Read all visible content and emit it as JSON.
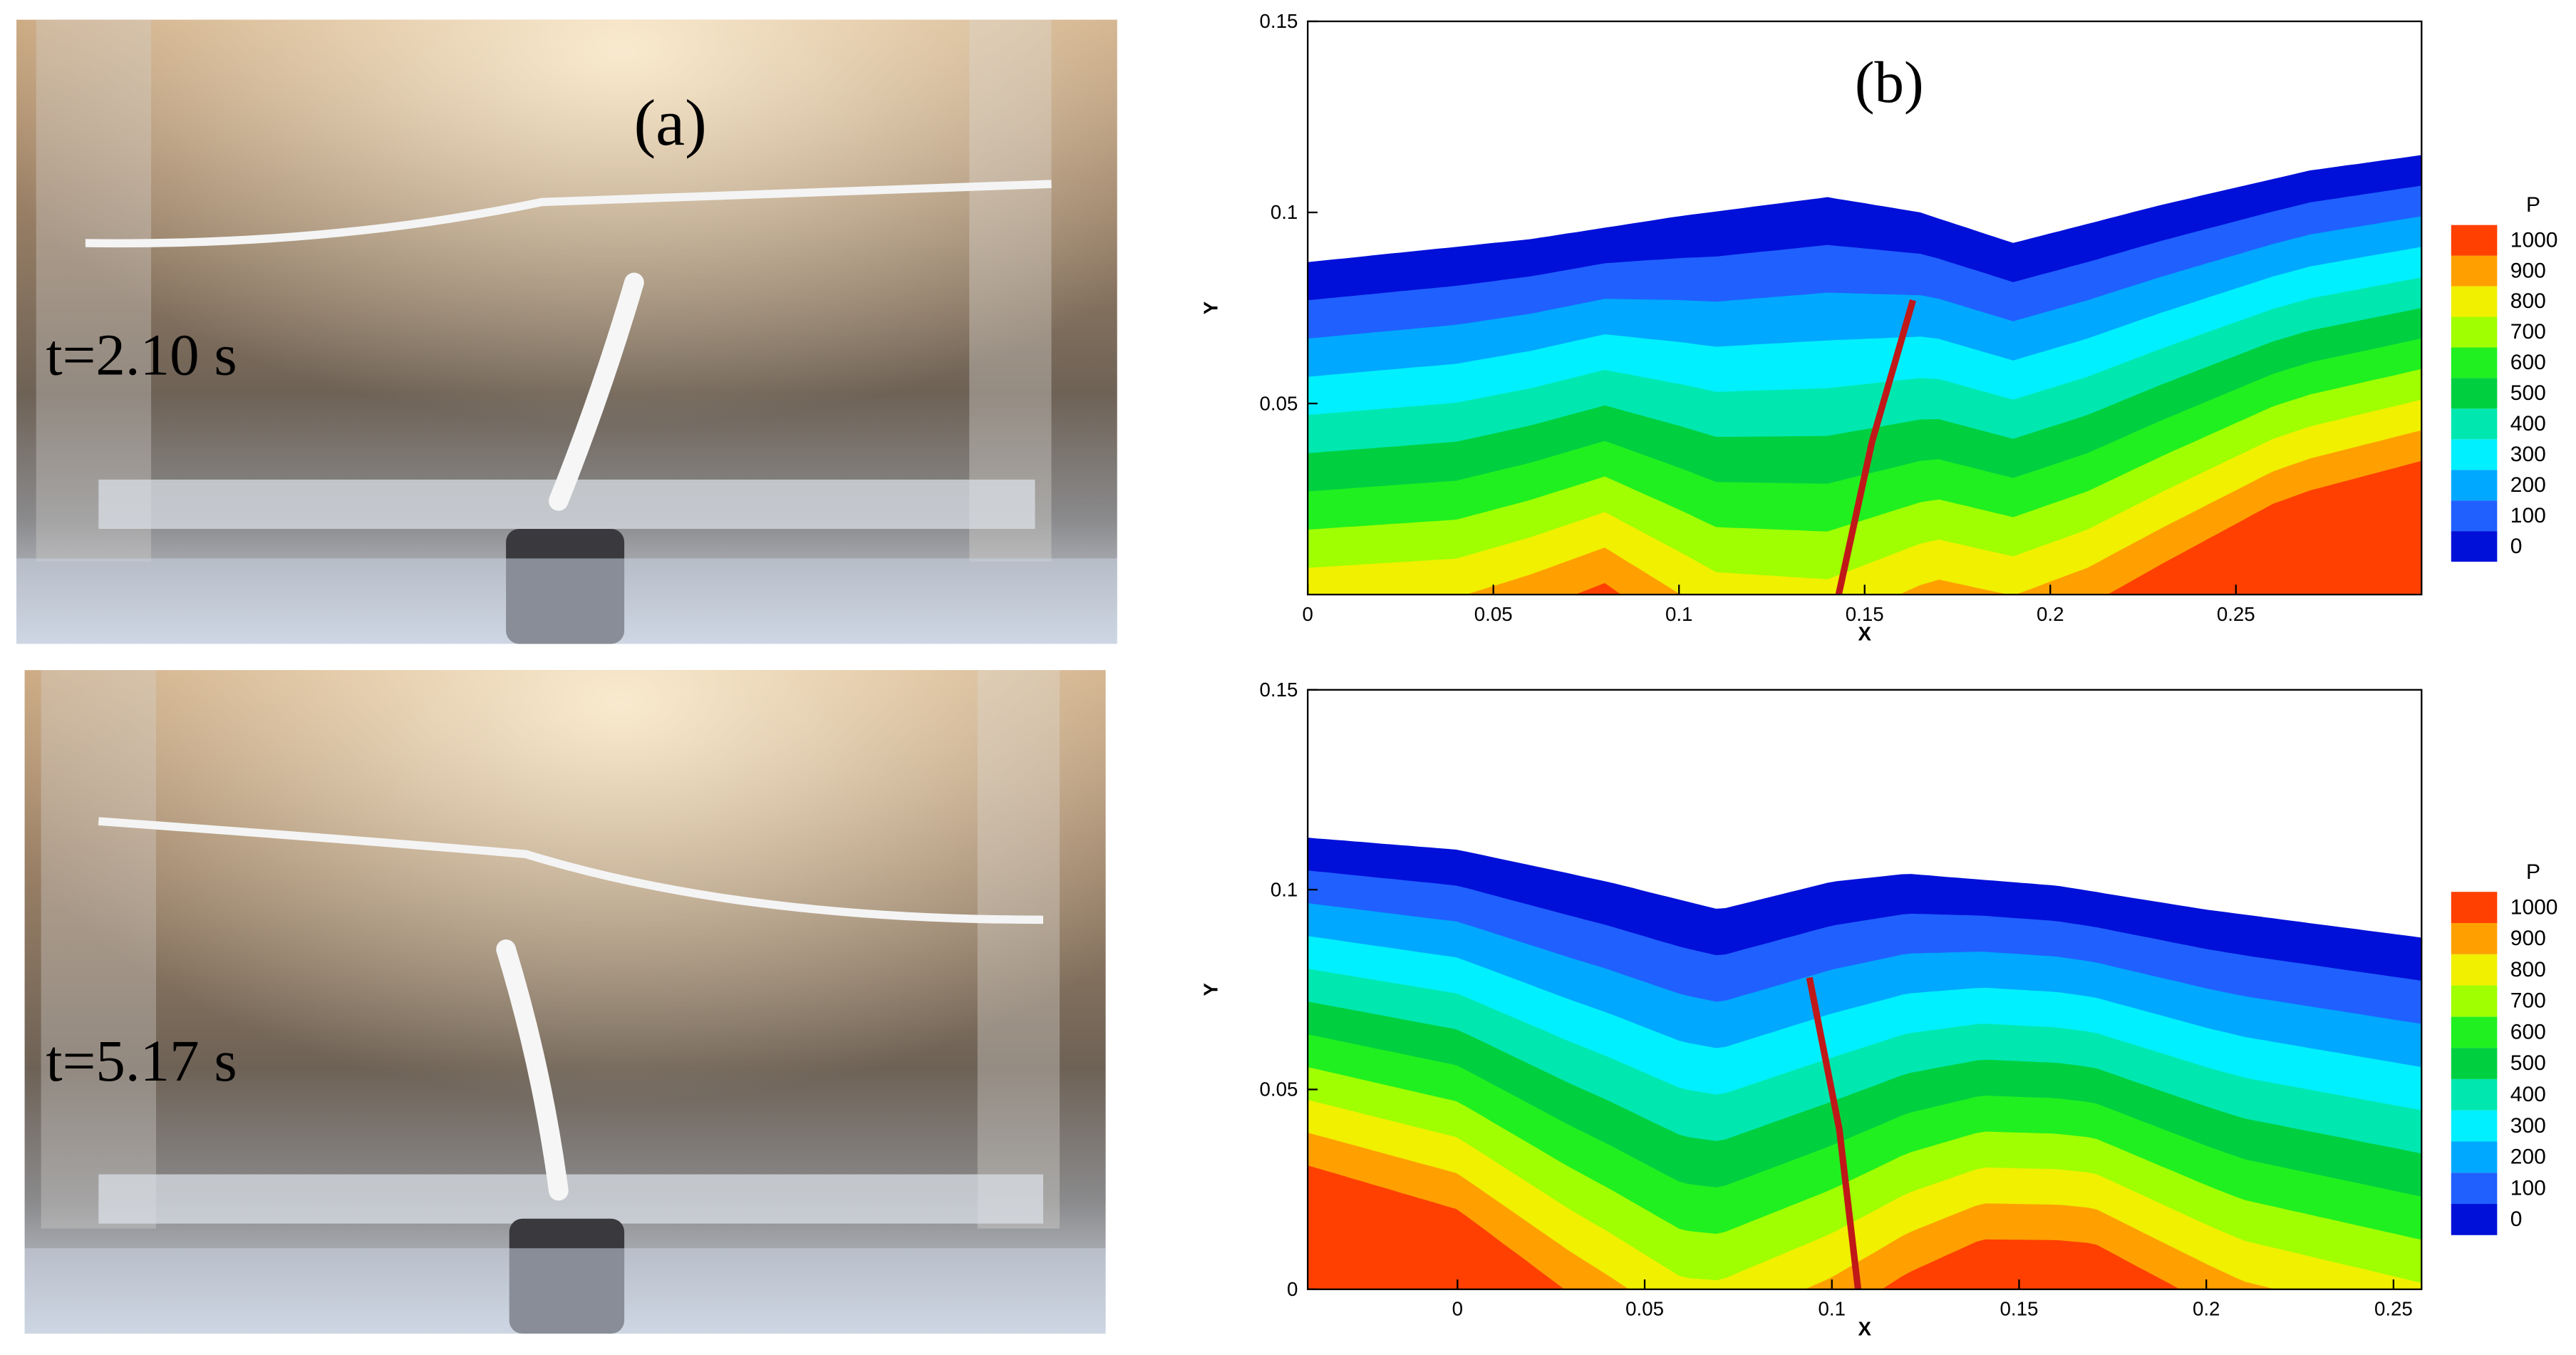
{
  "panel_a": {
    "label": "(a)",
    "times": [
      "t=2.10 s",
      "t=5.17 s"
    ]
  },
  "panel_b": {
    "label": "(b)"
  },
  "chart_data": [
    {
      "type": "contour",
      "xlabel": "X",
      "ylabel": "Y",
      "xlim": [
        0,
        0.3
      ],
      "ylim": [
        0,
        0.15
      ],
      "xticks": [
        0,
        0.05,
        0.1,
        0.15,
        0.2,
        0.25
      ],
      "yticks": [
        0.05,
        0.1,
        0.15
      ],
      "colorbar": {
        "title": "P",
        "levels": [
          0,
          100,
          200,
          300,
          400,
          500,
          600,
          700,
          800,
          900,
          1000
        ],
        "colors": [
          "#0010d8",
          "#2060ff",
          "#00a8ff",
          "#00f0ff",
          "#00e8b0",
          "#00d040",
          "#20f020",
          "#a0ff00",
          "#f0f000",
          "#ffa000",
          "#ff4000"
        ]
      }
    },
    {
      "type": "contour",
      "xlabel": "X",
      "ylabel": "Y",
      "xlim": [
        -0.04,
        0.2575
      ],
      "ylim": [
        0,
        0.15
      ],
      "xticks": [
        0,
        0.05,
        0.1,
        0.15,
        0.2,
        0.25
      ],
      "yticks": [
        0,
        0.05,
        0.1,
        0.15
      ],
      "colorbar": {
        "title": "P",
        "levels": [
          0,
          100,
          200,
          300,
          400,
          500,
          600,
          700,
          800,
          900,
          1000
        ],
        "colors": [
          "#0010d8",
          "#2060ff",
          "#00a8ff",
          "#00f0ff",
          "#00e8b0",
          "#00d040",
          "#20f020",
          "#a0ff00",
          "#f0f000",
          "#ffa000",
          "#ff4000"
        ]
      }
    }
  ]
}
